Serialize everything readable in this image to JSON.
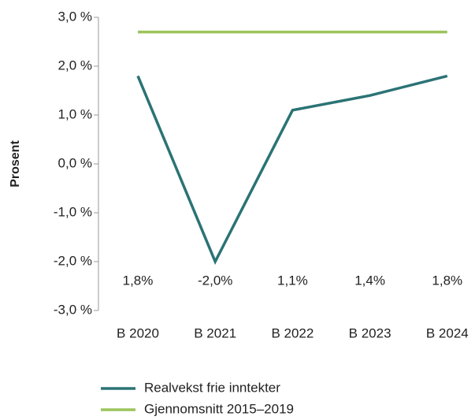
{
  "chart_data": {
    "type": "line",
    "y_label": "Prosent",
    "categories": [
      "B 2020",
      "B 2021",
      "B 2022",
      "B 2023",
      "B 2024"
    ],
    "series": [
      {
        "name": "Realvekst frie inntekter",
        "color": "#2b7375",
        "values": [
          1.8,
          -2.0,
          1.1,
          1.4,
          1.8
        ],
        "value_labels": [
          "1,8%",
          "-2,0%",
          "1,1%",
          "1,4%",
          "1,8%"
        ]
      },
      {
        "name": "Gjennomsnitt 2015–2019",
        "color": "#9cc45c",
        "values": [
          2.7,
          2.7,
          2.7,
          2.7,
          2.7
        ]
      }
    ],
    "ylim": [
      -3,
      3
    ],
    "yticks": [
      {
        "value": 3,
        "label": "3,0 %"
      },
      {
        "value": 2,
        "label": "2,0 %"
      },
      {
        "value": 1,
        "label": "1,0 %"
      },
      {
        "value": 0,
        "label": "0,0 %"
      },
      {
        "value": -1,
        "label": "-1,0 %"
      },
      {
        "value": -2,
        "label": "-2,0 %"
      },
      {
        "value": -3,
        "label": "-3,0 %"
      }
    ],
    "legend": "bottom"
  }
}
